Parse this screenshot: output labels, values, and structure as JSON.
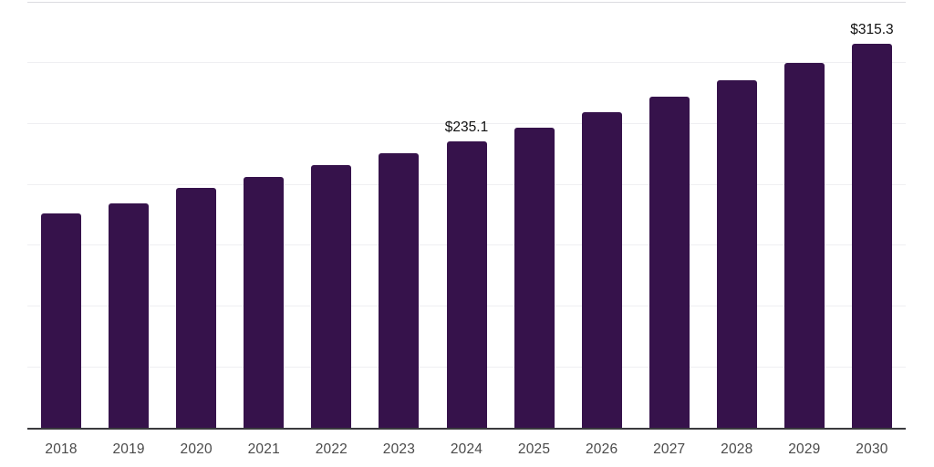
{
  "chart_data": {
    "type": "bar",
    "title": "",
    "xlabel": "",
    "ylabel": "",
    "categories": [
      "2018",
      "2019",
      "2020",
      "2021",
      "2022",
      "2023",
      "2024",
      "2025",
      "2026",
      "2027",
      "2028",
      "2029",
      "2030"
    ],
    "values": [
      176.3,
      184.3,
      197.2,
      206.4,
      215.5,
      225.3,
      235.1,
      246.9,
      259.2,
      272.2,
      285.8,
      300.1,
      315.3
    ],
    "data_labels": [
      {
        "category": "2024",
        "text": "$235.1"
      },
      {
        "category": "2030",
        "text": "$315.3"
      }
    ],
    "ylim": [
      0,
      350
    ],
    "gridline_step": 50,
    "grid": "horizontal",
    "y_axis_tick_labels": "none",
    "legend": "none",
    "colors": {
      "bar": "#36124b",
      "axis_line": "#3a3a3e",
      "gridline": "#efeff2",
      "top_gridline": "#dcdce0",
      "tick_label": "#4a4a4a",
      "data_label": "#111111",
      "background": "#ffffff"
    }
  }
}
